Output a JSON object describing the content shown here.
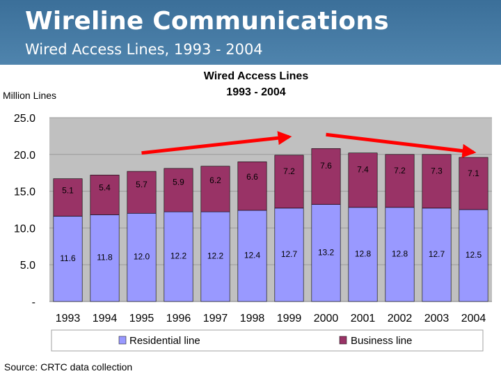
{
  "header": {
    "title": "Wireline Communications",
    "subtitle": "Wired Access Lines, 1993 - 2004"
  },
  "source": "Source: CRTC data collection",
  "colors": {
    "banner": "#4a7fa8",
    "plot_area": "#c0c0c0",
    "residential": "#9999ff",
    "business": "#993366",
    "arrow": "#ff0000"
  },
  "chart_data": {
    "type": "bar",
    "stacked": true,
    "title": "Wired Access Lines",
    "subtitle": "1993 - 2004",
    "ylabel": "Million Lines",
    "xlabel": "",
    "ylim": [
      0,
      25
    ],
    "yticks": [
      "-",
      "5.0",
      "10.0",
      "15.0",
      "20.0",
      "25.0"
    ],
    "grid": true,
    "legend_position": "bottom",
    "categories": [
      "1993",
      "1994",
      "1995",
      "1996",
      "1997",
      "1998",
      "1999",
      "2000",
      "2001",
      "2002",
      "2003",
      "2004"
    ],
    "series": [
      {
        "name": "Residential line",
        "color": "#9999ff",
        "values": [
          11.6,
          11.8,
          12.0,
          12.2,
          12.2,
          12.4,
          12.7,
          13.2,
          12.8,
          12.8,
          12.7,
          12.5
        ],
        "labels": [
          "11.6",
          "11.8",
          "12.0",
          "12.2",
          "12.2",
          "12.4",
          "12.7",
          "13.2",
          "12.8",
          "12.8",
          "12.7",
          "12.5"
        ]
      },
      {
        "name": "Business line",
        "color": "#993366",
        "values": [
          5.1,
          5.4,
          5.7,
          5.9,
          6.2,
          6.6,
          7.2,
          7.6,
          7.4,
          7.2,
          7.3,
          7.1
        ],
        "labels": [
          "5.1",
          "5.4",
          "5.7",
          "5.9",
          "6.2",
          "6.6",
          "7.2",
          "7.6",
          "7.4",
          "7.2",
          "7.3",
          "7.1"
        ]
      }
    ],
    "annotations": [
      {
        "type": "arrow",
        "color": "#ff0000",
        "from": [
          "1995",
          20.2
        ],
        "to": [
          "1999",
          22.4
        ]
      },
      {
        "type": "arrow",
        "color": "#ff0000",
        "from": [
          "2000",
          22.7
        ],
        "to": [
          "2004",
          20.3
        ]
      }
    ]
  }
}
